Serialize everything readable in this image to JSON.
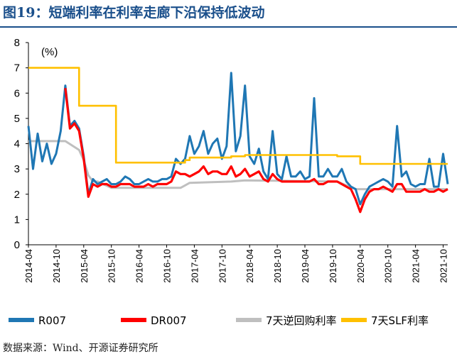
{
  "figure_title": "图19：短端利率在利率走廊下沿保持低波动",
  "source_note": "数据来源：Wind、开源证券研究所",
  "chart_data": {
    "type": "line",
    "title": "",
    "unit_label": "(%)",
    "ylim": [
      0,
      8
    ],
    "yticks": [
      0,
      1,
      2,
      3,
      4,
      5,
      6,
      7,
      8
    ],
    "xlim": [
      "2014-04",
      "2021-11"
    ],
    "xticks": [
      "2014-04",
      "2014-10",
      "2015-04",
      "2015-10",
      "2016-04",
      "2016-10",
      "2017-04",
      "2017-10",
      "2018-04",
      "2018-10",
      "2019-04",
      "2019-10",
      "2020-04",
      "2020-10",
      "2021-04",
      "2021-10"
    ],
    "grid": false,
    "legend_position": "bottom",
    "series": [
      {
        "name": "R007",
        "color": "#1f77b4",
        "x": [
          "2014-04",
          "2014-05",
          "2014-06",
          "2014-07",
          "2014-08",
          "2014-09",
          "2014-10",
          "2014-11",
          "2014-12",
          "2015-01",
          "2015-02",
          "2015-03",
          "2015-04",
          "2015-05",
          "2015-06",
          "2015-07",
          "2015-08",
          "2015-09",
          "2015-10",
          "2015-11",
          "2015-12",
          "2016-01",
          "2016-02",
          "2016-03",
          "2016-04",
          "2016-05",
          "2016-06",
          "2016-07",
          "2016-08",
          "2016-09",
          "2016-10",
          "2016-11",
          "2016-12",
          "2017-01",
          "2017-02",
          "2017-03",
          "2017-04",
          "2017-05",
          "2017-06",
          "2017-07",
          "2017-08",
          "2017-09",
          "2017-10",
          "2017-11",
          "2017-12",
          "2018-01",
          "2018-02",
          "2018-03",
          "2018-04",
          "2018-05",
          "2018-06",
          "2018-07",
          "2018-08",
          "2018-09",
          "2018-10",
          "2018-11",
          "2018-12",
          "2019-01",
          "2019-02",
          "2019-03",
          "2019-04",
          "2019-05",
          "2019-06",
          "2019-07",
          "2019-08",
          "2019-09",
          "2019-10",
          "2019-11",
          "2019-12",
          "2020-01",
          "2020-02",
          "2020-03",
          "2020-04",
          "2020-05",
          "2020-06",
          "2020-07",
          "2020-08",
          "2020-09",
          "2020-10",
          "2020-11",
          "2020-12",
          "2021-01",
          "2021-02",
          "2021-03",
          "2021-04",
          "2021-05",
          "2021-06",
          "2021-07",
          "2021-08",
          "2021-09",
          "2021-10",
          "2021-11"
        ],
        "y": [
          4.7,
          3.0,
          4.4,
          3.3,
          4.0,
          3.2,
          3.6,
          4.5,
          6.3,
          4.7,
          4.9,
          4.6,
          3.5,
          2.0,
          2.6,
          2.4,
          2.5,
          2.6,
          2.4,
          2.4,
          2.5,
          2.7,
          2.6,
          2.4,
          2.4,
          2.5,
          2.6,
          2.5,
          2.5,
          2.6,
          2.6,
          2.7,
          3.4,
          3.2,
          3.4,
          4.3,
          3.6,
          3.9,
          4.5,
          3.6,
          4.0,
          4.2,
          3.4,
          3.9,
          6.8,
          3.7,
          4.3,
          6.3,
          3.5,
          3.2,
          3.8,
          2.9,
          2.6,
          4.5,
          2.8,
          2.6,
          3.5,
          2.7,
          2.7,
          2.9,
          2.6,
          2.7,
          5.8,
          2.7,
          2.7,
          3.0,
          2.7,
          2.7,
          3.0,
          2.5,
          2.3,
          2.2,
          1.6,
          2.0,
          2.3,
          2.4,
          2.5,
          2.6,
          2.5,
          2.3,
          4.7,
          2.7,
          2.9,
          2.4,
          2.3,
          2.4,
          2.4,
          3.4,
          2.3,
          2.3,
          3.6,
          2.4
        ]
      },
      {
        "name": "DR007",
        "color": "#ff0000",
        "x": [
          "2014-12",
          "2015-01",
          "2015-02",
          "2015-03",
          "2015-04",
          "2015-05",
          "2015-06",
          "2015-07",
          "2015-08",
          "2015-09",
          "2015-10",
          "2015-11",
          "2015-12",
          "2016-01",
          "2016-02",
          "2016-03",
          "2016-04",
          "2016-05",
          "2016-06",
          "2016-07",
          "2016-08",
          "2016-09",
          "2016-10",
          "2016-11",
          "2016-12",
          "2017-01",
          "2017-02",
          "2017-03",
          "2017-04",
          "2017-05",
          "2017-06",
          "2017-07",
          "2017-08",
          "2017-09",
          "2017-10",
          "2017-11",
          "2017-12",
          "2018-01",
          "2018-02",
          "2018-03",
          "2018-04",
          "2018-05",
          "2018-06",
          "2018-07",
          "2018-08",
          "2018-09",
          "2018-10",
          "2018-11",
          "2018-12",
          "2019-01",
          "2019-02",
          "2019-03",
          "2019-04",
          "2019-05",
          "2019-06",
          "2019-07",
          "2019-08",
          "2019-09",
          "2019-10",
          "2019-11",
          "2019-12",
          "2020-01",
          "2020-02",
          "2020-03",
          "2020-04",
          "2020-05",
          "2020-06",
          "2020-07",
          "2020-08",
          "2020-09",
          "2020-10",
          "2020-11",
          "2020-12",
          "2021-01",
          "2021-02",
          "2021-03",
          "2021-04",
          "2021-05",
          "2021-06",
          "2021-07",
          "2021-08",
          "2021-09",
          "2021-10",
          "2021-11"
        ],
        "y": [
          6.2,
          4.6,
          4.8,
          4.5,
          3.4,
          1.9,
          2.4,
          2.3,
          2.4,
          2.4,
          2.3,
          2.3,
          2.4,
          2.4,
          2.4,
          2.3,
          2.3,
          2.3,
          2.4,
          2.3,
          2.4,
          2.4,
          2.4,
          2.5,
          2.9,
          2.8,
          2.8,
          2.7,
          2.8,
          2.9,
          3.1,
          2.8,
          2.9,
          2.9,
          2.8,
          2.8,
          3.1,
          2.7,
          2.8,
          3.0,
          2.7,
          2.8,
          2.9,
          2.6,
          2.5,
          2.8,
          2.6,
          2.5,
          2.5,
          2.5,
          2.5,
          2.5,
          2.5,
          2.5,
          2.6,
          2.4,
          2.4,
          2.5,
          2.5,
          2.5,
          2.4,
          2.3,
          2.2,
          1.8,
          1.3,
          1.8,
          2.1,
          2.2,
          2.2,
          2.3,
          2.2,
          2.1,
          2.4,
          2.4,
          2.1,
          2.1,
          2.1,
          2.1,
          2.2,
          2.1,
          2.1,
          2.2,
          2.1,
          2.2
        ]
      },
      {
        "name": "7天逆回购利率",
        "color": "#bfbfbf",
        "x": [
          "2014-04",
          "2014-11",
          "2014-12",
          "2015-03",
          "2015-04",
          "2015-05",
          "2015-06",
          "2015-07",
          "2015-10",
          "2016-02",
          "2016-03",
          "2017-01",
          "2017-02",
          "2017-03",
          "2017-12",
          "2018-03",
          "2019-11",
          "2020-03",
          "2021-11"
        ],
        "y": [
          4.1,
          4.1,
          4.1,
          3.75,
          3.35,
          2.75,
          2.5,
          2.5,
          2.25,
          2.25,
          2.25,
          2.25,
          2.35,
          2.45,
          2.5,
          2.55,
          2.5,
          2.2,
          2.2
        ]
      },
      {
        "name": "7天SLF利率",
        "color": "#ffc000",
        "x": [
          "2014-04",
          "2015-03",
          "2015-03",
          "2015-11",
          "2015-11",
          "2017-02",
          "2017-02",
          "2017-03",
          "2017-03",
          "2017-12",
          "2017-12",
          "2018-03",
          "2018-03",
          "2019-11",
          "2019-11",
          "2020-04",
          "2020-04",
          "2021-11"
        ],
        "y": [
          7.0,
          7.0,
          5.5,
          5.5,
          3.25,
          3.25,
          3.35,
          3.35,
          3.45,
          3.45,
          3.5,
          3.5,
          3.55,
          3.55,
          3.5,
          3.5,
          3.2,
          3.2
        ]
      }
    ]
  }
}
